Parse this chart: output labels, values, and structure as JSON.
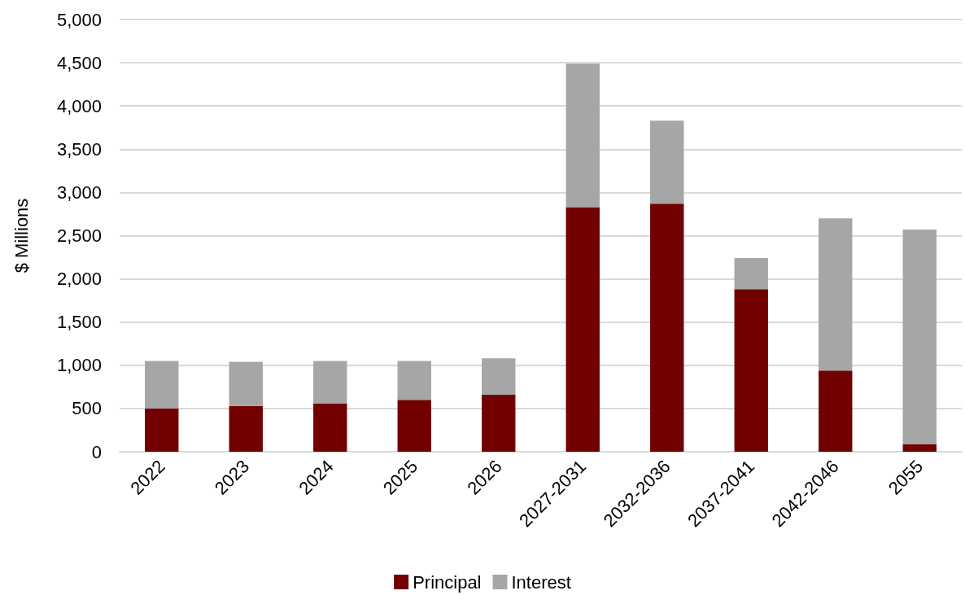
{
  "chart_data": {
    "type": "bar",
    "stacked": true,
    "ylabel": "$ Millions",
    "categories": [
      "2022",
      "2023",
      "2024",
      "2025",
      "2026",
      "2027-2031",
      "2032-2036",
      "2037-2041",
      "2042-2046",
      "2055"
    ],
    "series": [
      {
        "name": "Principal",
        "color": "#720000",
        "values": [
          500,
          530,
          560,
          600,
          660,
          2830,
          2870,
          1880,
          940,
          90
        ]
      },
      {
        "name": "Interest",
        "color": "#a6a6a6",
        "values": [
          550,
          510,
          490,
          450,
          420,
          1660,
          960,
          360,
          1760,
          2480
        ]
      }
    ],
    "ylim": [
      0,
      5000
    ],
    "yticks": [
      {
        "value": 0,
        "label": "0"
      },
      {
        "value": 500,
        "label": "500"
      },
      {
        "value": 1000,
        "label": "1,000"
      },
      {
        "value": 1500,
        "label": "1,500"
      },
      {
        "value": 2000,
        "label": "2,000"
      },
      {
        "value": 2500,
        "label": "2,500"
      },
      {
        "value": 3000,
        "label": "3,000"
      },
      {
        "value": 3500,
        "label": "3,500"
      },
      {
        "value": 4000,
        "label": "4,000"
      },
      {
        "value": 4500,
        "label": "4,500"
      },
      {
        "value": 5000,
        "label": "5,000"
      }
    ],
    "grid": "y",
    "legend": "bottom"
  }
}
